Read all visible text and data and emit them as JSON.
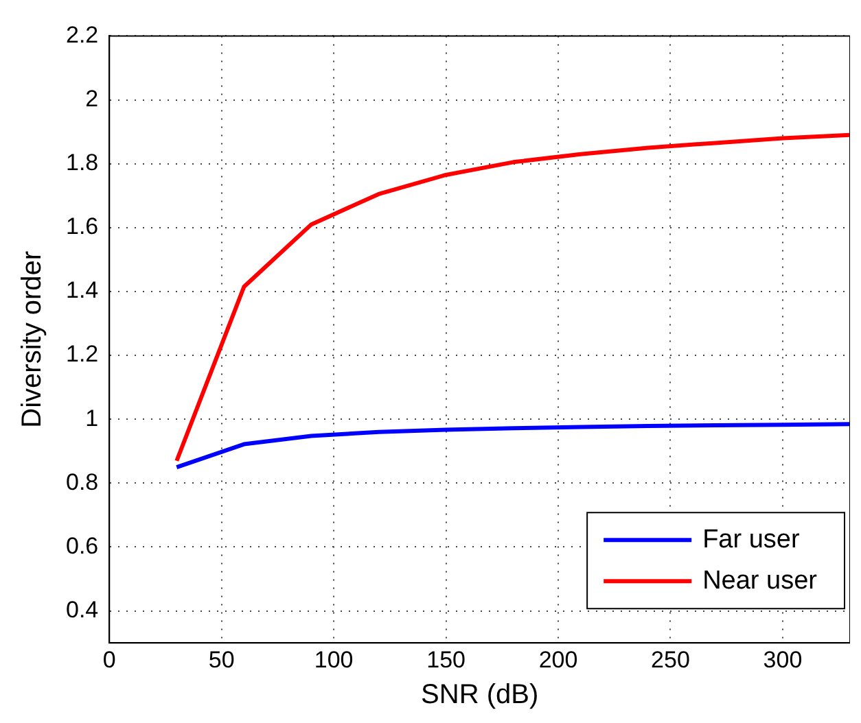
{
  "chart_data": {
    "type": "line",
    "xlabel": "SNR (dB)",
    "ylabel": "Diversity order",
    "x": [
      30,
      60,
      90,
      120,
      150,
      180,
      210,
      240,
      270,
      300,
      330
    ],
    "series": [
      {
        "name": "Far user",
        "color": "#0000ff",
        "values": [
          0.85,
          0.922,
          0.948,
          0.96,
          0.967,
          0.972,
          0.976,
          0.979,
          0.981,
          0.983,
          0.985
        ]
      },
      {
        "name": "Near user",
        "color": "#ff0000",
        "values": [
          0.87,
          1.415,
          1.61,
          1.705,
          1.765,
          1.805,
          1.83,
          1.85,
          1.865,
          1.88,
          1.89
        ]
      }
    ],
    "xlim": [
      0,
      330
    ],
    "xticks": [
      0,
      50,
      100,
      150,
      200,
      250,
      300
    ],
    "ylim": [
      0.3,
      2.2
    ],
    "yticks": [
      0.4,
      0.6,
      0.8,
      1,
      1.2,
      1.4,
      1.6,
      1.8,
      2,
      2.2
    ],
    "grid": true,
    "legend": "bottom right",
    "marker": "none",
    "line_style": "solid"
  }
}
